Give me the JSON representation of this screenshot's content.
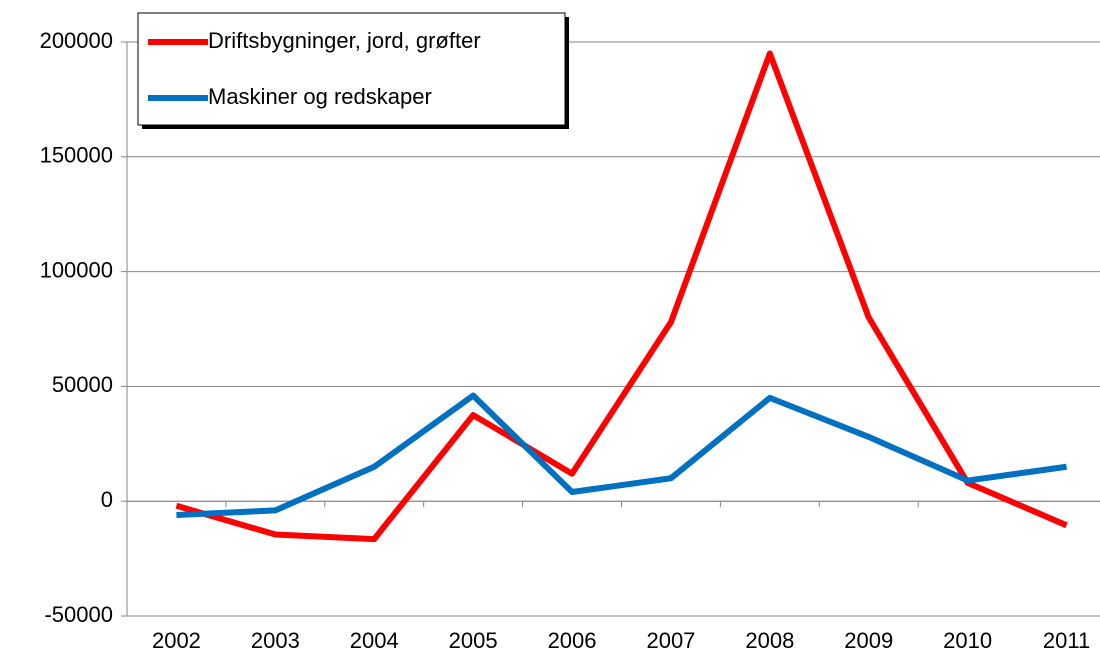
{
  "chart_data": {
    "type": "line",
    "categories": [
      "2002",
      "2003",
      "2004",
      "2005",
      "2006",
      "2007",
      "2008",
      "2009",
      "2010",
      "2011"
    ],
    "series": [
      {
        "name": "Driftsbygninger, jord, grøfter",
        "color": "#ff0000",
        "values": [
          -2000,
          -14500,
          -16500,
          37500,
          12000,
          78000,
          195000,
          80000,
          8000,
          -10500
        ]
      },
      {
        "name": "Maskiner og redskaper",
        "color": "#0070c0",
        "values": [
          -6000,
          -4000,
          15000,
          46000,
          4000,
          10000,
          45000,
          28000,
          9000,
          15000
        ]
      }
    ],
    "ylim": [
      -50000,
      200000
    ],
    "yticks": [
      -50000,
      0,
      50000,
      100000,
      150000,
      200000
    ],
    "grid": true,
    "legend": "upper left"
  }
}
